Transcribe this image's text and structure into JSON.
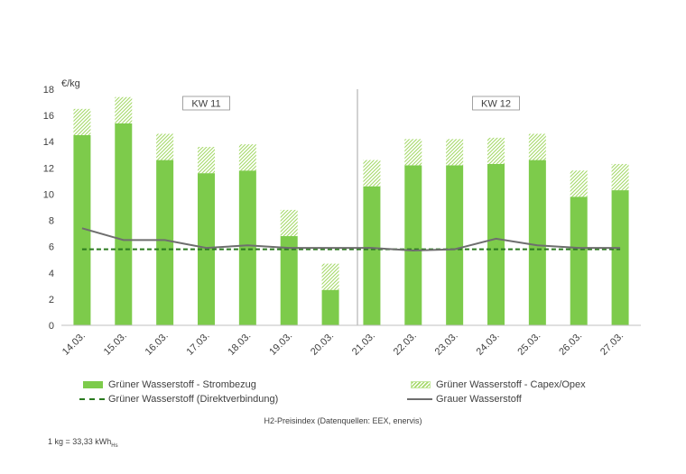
{
  "chart_data": {
    "type": "bar",
    "unit_label": "€/kg",
    "ylim": [
      0,
      18
    ],
    "yticks": [
      0,
      2,
      4,
      6,
      8,
      10,
      12,
      14,
      16,
      18
    ],
    "categories": [
      "14.03.",
      "15.03.",
      "16.03.",
      "17.03.",
      "18.03.",
      "19.03.",
      "20.03.",
      "21.03.",
      "22.03.",
      "23.03.",
      "24.03.",
      "25.03.",
      "26.03.",
      "27.03."
    ],
    "series": [
      {
        "name": "Grüner Wasserstoff - Strombezug",
        "kind": "stacked-bar",
        "color": "#7dcb4b",
        "values": [
          14.5,
          15.4,
          12.6,
          11.6,
          11.8,
          6.8,
          2.7,
          10.6,
          12.2,
          12.2,
          12.3,
          12.6,
          9.8,
          10.3
        ]
      },
      {
        "name": "Grüner Wasserstoff - Capex/Opex",
        "kind": "stacked-bar-hatched",
        "color": "#a6d96a",
        "values": [
          2.0,
          2.0,
          2.0,
          2.0,
          2.0,
          2.0,
          2.0,
          2.0,
          2.0,
          2.0,
          2.0,
          2.0,
          2.0,
          2.0
        ]
      },
      {
        "name": "Grüner Wasserstoff (Direktverbindung)",
        "kind": "dashed-line",
        "color": "#2a7a1f",
        "values": [
          5.8,
          5.8,
          5.8,
          5.8,
          5.8,
          5.8,
          5.8,
          5.8,
          5.8,
          5.8,
          5.8,
          5.8,
          5.8,
          5.8
        ]
      },
      {
        "name": "Grauer Wasserstoff",
        "kind": "line",
        "color": "#6e6e6e",
        "values": [
          7.4,
          6.5,
          6.5,
          5.9,
          6.1,
          5.9,
          5.9,
          5.9,
          5.7,
          5.8,
          6.6,
          6.1,
          5.9,
          5.9
        ]
      }
    ],
    "week_labels": [
      {
        "label": "KW 11",
        "from": "14.03.",
        "to": "20.03."
      },
      {
        "label": "KW 12",
        "from": "21.03.",
        "to": "27.03."
      }
    ],
    "grid": false,
    "caption": "H2-Preisindex (Datenquellen: EEX, enervis)",
    "note_prefix": "1 kg = 33,33 kWh",
    "note_sub": "Hs"
  }
}
